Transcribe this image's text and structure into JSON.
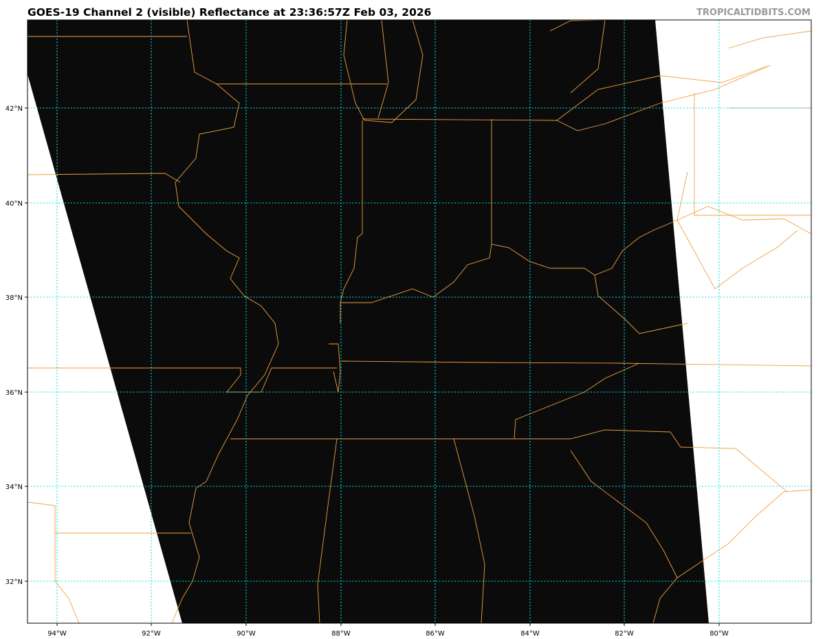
{
  "header": {
    "title": "GOES-19 Channel 2 (visible) Reflectance at 23:36:57Z Feb 03, 2026",
    "watermark": "TROPICALTIDBITS.COM"
  },
  "map": {
    "lat_labels": [
      "42°N",
      "40°N",
      "38°N",
      "36°N",
      "34°N",
      "32°N"
    ],
    "lon_labels": [
      "94°W",
      "92°W",
      "90°W",
      "88°W",
      "86°W",
      "84°W",
      "82°W",
      "80°W"
    ],
    "colors": {
      "imagery": "#0a0a0a",
      "borders": "#f0a040",
      "gridlines": "#00e5e5",
      "background": "#ffffff"
    }
  }
}
